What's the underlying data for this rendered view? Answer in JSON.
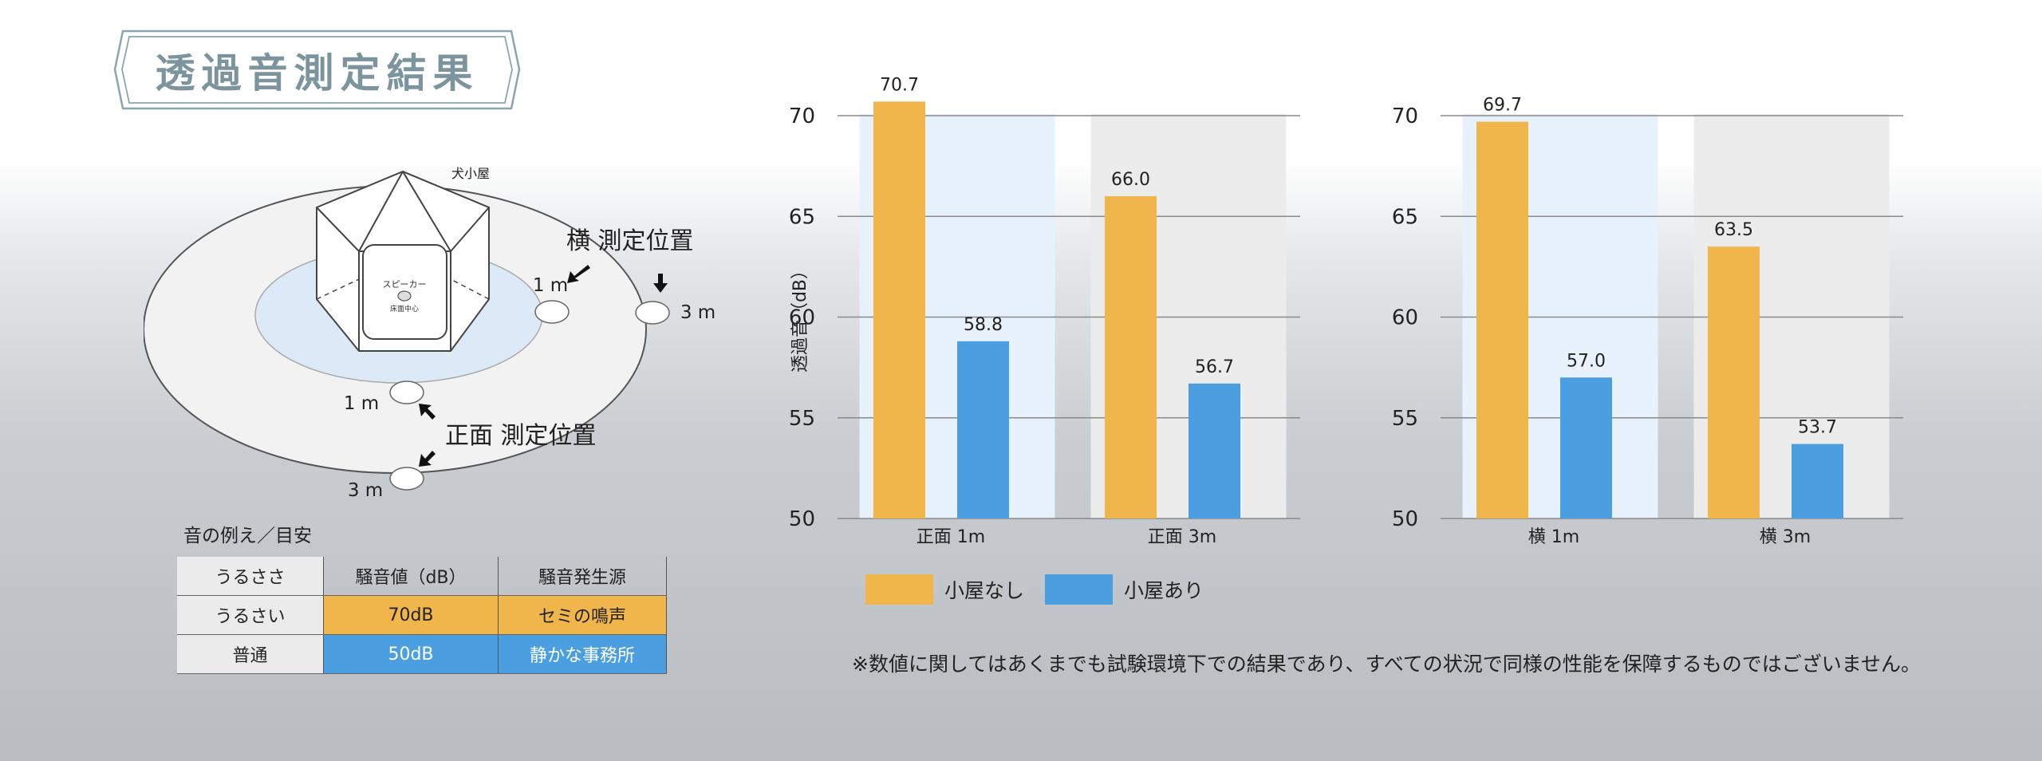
{
  "title": "透過音測定結果",
  "diagram": {
    "hut_label": "犬小屋",
    "speaker_label": "スピーカー",
    "speaker_center_label": "床面中心",
    "side_position_label": "横 測定位置",
    "front_position_label": "正面 測定位置",
    "distance_1m": "1 m",
    "distance_3m": "3 m"
  },
  "noise_table": {
    "caption": "音の例え／目安",
    "headers": [
      "うるささ",
      "騒音値（dB）",
      "騒音発生源"
    ],
    "rows": [
      [
        "うるさい",
        "70dB",
        "セミの鳴声"
      ],
      [
        "普通",
        "50dB",
        "静かな事務所"
      ]
    ],
    "colors": {
      "loud": "#f0b64b",
      "normal": "#4b9fe0"
    }
  },
  "chart_data": [
    {
      "type": "bar",
      "categories": [
        "正面 1m",
        "正面 3m"
      ],
      "series": [
        {
          "name": "小屋なし",
          "values": [
            70.7,
            66.0
          ]
        },
        {
          "name": "小屋あり",
          "values": [
            58.8,
            56.7
          ]
        }
      ],
      "value_labels": [
        [
          "70.7",
          "66.0"
        ],
        [
          "58.8",
          "56.7"
        ]
      ],
      "ylabel": "透過音（dB）",
      "ylim": [
        50,
        70
      ],
      "yticks": [
        50,
        55,
        60,
        65,
        70
      ],
      "grid": true
    },
    {
      "type": "bar",
      "categories": [
        "横 1m",
        "横 3m"
      ],
      "series": [
        {
          "name": "小屋なし",
          "values": [
            69.7,
            63.5
          ]
        },
        {
          "name": "小屋あり",
          "values": [
            57.0,
            53.7
          ]
        }
      ],
      "value_labels": [
        [
          "69.7",
          "63.5"
        ],
        [
          "57.0",
          "53.7"
        ]
      ],
      "ylabel": "",
      "ylim": [
        50,
        70
      ],
      "yticks": [
        50,
        55,
        60,
        65,
        70
      ],
      "grid": true
    }
  ],
  "legend": [
    {
      "label": "小屋なし",
      "color": "#f0b64b"
    },
    {
      "label": "小屋あり",
      "color": "#4b9fe0"
    }
  ],
  "panel_colors": [
    "#e8f2fc",
    "#ececec"
  ],
  "footnote": "※数値に関してはあくまでも試験環境下での結果であり、すべての状況で同様の性能を保障するものではございません。"
}
